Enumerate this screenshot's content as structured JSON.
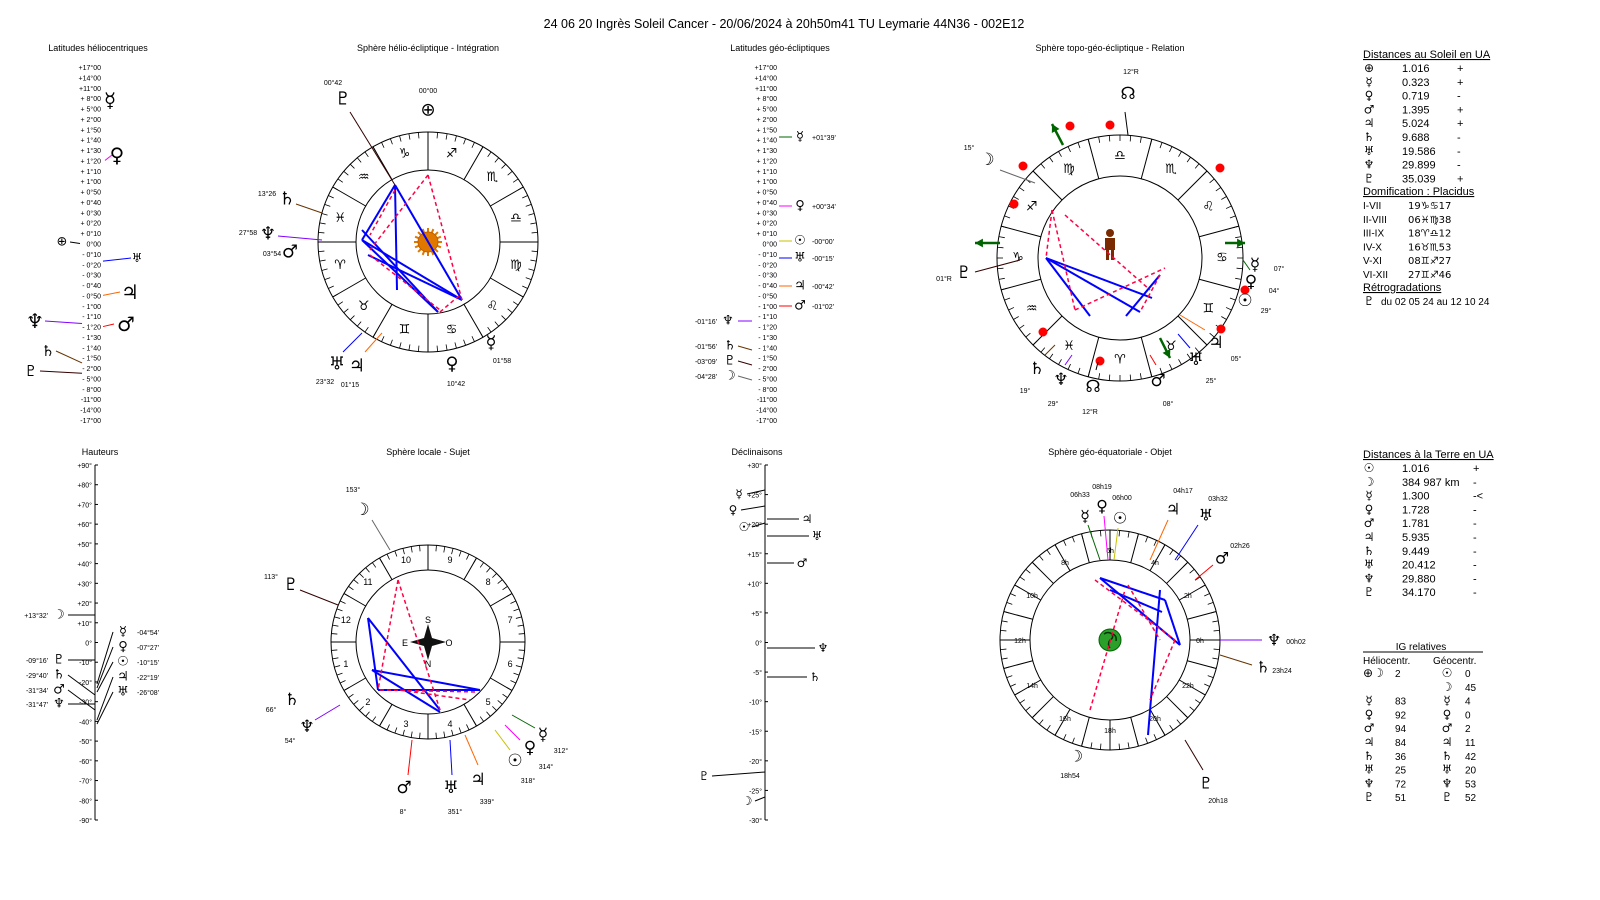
{
  "title": "24 06 20 Ingrès Soleil Cancer   -  20/06/2024 à 20h50m41 TU  Leymarie  44N36 - 002E12",
  "glyphs": {
    "earth": "⊕",
    "sun": "☉",
    "moon": "☽",
    "mercury": "☿",
    "venus": "♀",
    "mars": "♂",
    "jupiter": "♃",
    "saturn": "♄",
    "uranus": "♅",
    "neptune": "♆",
    "pluto": "♇",
    "node": "☊"
  },
  "colors": {
    "earth": "#000000",
    "sun": "#c8c000",
    "moon": "#666666",
    "mercury": "#006400",
    "venus": "#ff00ff",
    "mars": "#ff0000",
    "jupiter": "#ff6600",
    "saturn": "#663300",
    "uranus": "#0000ff",
    "neptune": "#8000ff",
    "pluto": "#330000",
    "node": "#000000",
    "aspect_major": "#0000ff",
    "aspect_minor": "#ff0044",
    "arrow": "#006400"
  },
  "panels": {
    "helio_lat": {
      "title": "Latitudes héliocentriques",
      "ticks": [
        "+17°00",
        "+14°00",
        "+11°00",
        "+ 8°00",
        "+ 5°00",
        "+ 2°00",
        "+ 1°50",
        "+ 1°40",
        "+ 1°30",
        "+ 1°20",
        "+ 1°10",
        "+ 1°00",
        "+ 0°50",
        "+ 0°40",
        "+ 0°30",
        "+ 0°20",
        "+ 0°10",
        "0°00",
        "- 0°10",
        "- 0°20",
        "- 0°30",
        "- 0°40",
        "- 0°50",
        "- 1°00",
        "- 1°10",
        "- 1°20",
        "- 1°30",
        "- 1°40",
        "- 1°50",
        "- 2°00",
        "- 5°00",
        "- 8°00",
        "-11°00",
        "-14°00",
        "-17°00"
      ]
    },
    "helio_sphere": {
      "title": "Sphère hélio-écliptique - Intégration",
      "signs": [
        "♈",
        "♉",
        "♊",
        "♋",
        "♌",
        "♍",
        "♎",
        "♏",
        "♐",
        "♑",
        "♒",
        "♓"
      ],
      "planets": [
        {
          "p": "pluto",
          "label": "00°42"
        },
        {
          "p": "earth",
          "label": "00°00"
        },
        {
          "p": "saturn",
          "label": "13°26"
        },
        {
          "p": "neptune",
          "label": "27°58"
        },
        {
          "p": "mars",
          "label": "03°54"
        },
        {
          "p": "uranus",
          "label": "23°32"
        },
        {
          "p": "jupiter",
          "label": "01°15"
        },
        {
          "p": "venus",
          "label": "10°42"
        },
        {
          "p": "mercury",
          "label": "01°58"
        }
      ]
    },
    "geo_lat": {
      "title": "Latitudes géo-écliptiques",
      "markers": [
        {
          "p": "mercury",
          "label": "+01°39'"
        },
        {
          "p": "venus",
          "label": "+00°34'"
        },
        {
          "p": "sun",
          "label": "-00°00'"
        },
        {
          "p": "uranus",
          "label": "-00°15'"
        },
        {
          "p": "jupiter",
          "label": "-00°42'"
        },
        {
          "p": "mars",
          "label": "-01°02'"
        },
        {
          "p": "neptune",
          "label": "-01°16'"
        },
        {
          "p": "saturn",
          "label": "-01°56'"
        },
        {
          "p": "pluto",
          "label": "-03°09'"
        },
        {
          "p": "moon",
          "label": "-04°28'"
        }
      ]
    },
    "topo_sphere": {
      "title": "Sphère topo-géo-écliptique - Relation",
      "signs": [
        "♎",
        "♏",
        "♌",
        "♋",
        "♊",
        "♉",
        "♈",
        "♓",
        "♒",
        "♑",
        "♐",
        "♍"
      ],
      "planets": [
        {
          "p": "node",
          "label": "12°R"
        },
        {
          "p": "moon",
          "label": "15°"
        },
        {
          "p": "pluto",
          "label": "01°R"
        },
        {
          "p": "mercury",
          "label": "07°"
        },
        {
          "p": "venus",
          "label": "04°"
        },
        {
          "p": "sun",
          "label": "29°"
        },
        {
          "p": "jupiter",
          "label": "05°"
        },
        {
          "p": "uranus",
          "label": "25°"
        },
        {
          "p": "mars",
          "label": "08°"
        },
        {
          "p": "node",
          "label": "12°R"
        },
        {
          "p": "neptune",
          "label": "29°"
        },
        {
          "p": "saturn",
          "label": "19°"
        }
      ]
    },
    "heights": {
      "title": "Hauteurs",
      "ticks": [
        "+90°",
        "+80°",
        "+70°",
        "+60°",
        "+50°",
        "+40°",
        "+30°",
        "+20°",
        "+10°",
        "0°",
        "-10°",
        "-20°",
        "-30°",
        "-40°",
        "-50°",
        "-60°",
        "-70°",
        "-80°",
        "-90°"
      ],
      "markers": [
        {
          "p": "moon",
          "label": "+13°32'"
        },
        {
          "p": "mercury",
          "label": "-04°54'"
        },
        {
          "p": "venus",
          "label": "-07°27'"
        },
        {
          "p": "sun",
          "label": "-10°15'"
        },
        {
          "p": "pluto",
          "label": "-09°16'"
        },
        {
          "p": "jupiter",
          "label": "-22°19'"
        },
        {
          "p": "uranus",
          "label": "-26°08'"
        },
        {
          "p": "saturn",
          "label": "-29°40'"
        },
        {
          "p": "mars",
          "label": "-31°34'"
        },
        {
          "p": "neptune",
          "label": "-31°47'"
        }
      ]
    },
    "local_sphere": {
      "title": "Sphère locale - Sujet",
      "houses": [
        "1",
        "2",
        "3",
        "4",
        "5",
        "6",
        "7",
        "8",
        "9",
        "10",
        "11",
        "12"
      ],
      "compass": {
        "s": "S",
        "e": "E",
        "o": "O",
        "n": "N"
      },
      "planets": [
        {
          "p": "moon",
          "label": "153°"
        },
        {
          "p": "pluto",
          "label": "113°"
        },
        {
          "p": "saturn",
          "label": "66°"
        },
        {
          "p": "neptune",
          "label": "54°"
        },
        {
          "p": "mars",
          "label": "8°"
        },
        {
          "p": "uranus",
          "label": "351°"
        },
        {
          "p": "jupiter",
          "label": "339°"
        },
        {
          "p": "sun",
          "label": "318°"
        },
        {
          "p": "venus",
          "label": "314°"
        },
        {
          "p": "mercury",
          "label": "312°"
        }
      ]
    },
    "declinations": {
      "title": "Déclinaisons",
      "ticks": [
        "+30°",
        "+25°",
        "+20°",
        "+15°",
        "+10°",
        "+5°",
        "0°",
        "-5°",
        "-10°",
        "-15°",
        "-20°",
        "-25°",
        "-30°"
      ],
      "markers": [
        "mercury",
        "venus",
        "sun",
        "jupiter",
        "uranus",
        "mars",
        "neptune",
        "saturn",
        "pluto",
        "moon"
      ]
    },
    "equatorial_sphere": {
      "title": "Sphère géo-équatoriale - Objet",
      "hours": [
        "0h",
        "2h",
        "4h",
        "6h",
        "8h",
        "10h",
        "12h",
        "14h",
        "16h",
        "18h",
        "20h",
        "22h"
      ],
      "planets": [
        {
          "p": "mercury",
          "label": "06h33"
        },
        {
          "p": "venus",
          "label": "08h19"
        },
        {
          "p": "sun",
          "label": "06h00"
        },
        {
          "p": "jupiter",
          "label": "04h17"
        },
        {
          "p": "uranus",
          "label": "03h32"
        },
        {
          "p": "mars",
          "label": "02h26"
        },
        {
          "p": "neptune",
          "label": "00h02"
        },
        {
          "p": "saturn",
          "label": "23h24"
        },
        {
          "p": "pluto",
          "label": "20h18"
        },
        {
          "p": "moon",
          "label": "18h54"
        }
      ]
    }
  },
  "right_panel": {
    "sun_distances": {
      "title": "Distances au Soleil en UA",
      "rows": [
        {
          "p": "earth",
          "value": "1.016",
          "sign": "+"
        },
        {
          "p": "mercury",
          "value": "0.323",
          "sign": "+"
        },
        {
          "p": "venus",
          "value": "0.719",
          "sign": "-"
        },
        {
          "p": "mars",
          "value": "1.395",
          "sign": "+"
        },
        {
          "p": "jupiter",
          "value": "5.024",
          "sign": "+"
        },
        {
          "p": "saturn",
          "value": "9.688",
          "sign": "-"
        },
        {
          "p": "uranus",
          "value": "19.586",
          "sign": "-"
        },
        {
          "p": "neptune",
          "value": "29.899",
          "sign": "-"
        },
        {
          "p": "pluto",
          "value": "35.039",
          "sign": "+"
        }
      ]
    },
    "houses": {
      "title": "Domification : Placidus",
      "rows": [
        {
          "axis": "I-VII",
          "value": "19♑♋17"
        },
        {
          "axis": "II-VIII",
          "value": "06♓♍38"
        },
        {
          "axis": "III-IX",
          "value": "18♈♎12"
        },
        {
          "axis": "IV-X",
          "value": "16♉♏53"
        },
        {
          "axis": "V-XI",
          "value": "08♊♐27"
        },
        {
          "axis": "VI-XII",
          "value": "27♊♐46"
        }
      ]
    },
    "retro": {
      "title": "Rétrogradations",
      "rows": [
        {
          "p": "pluto",
          "text": "du 02 05 24 au 12 10 24"
        }
      ]
    },
    "earth_distances": {
      "title": "Distances à la Terre en UA",
      "rows": [
        {
          "p": "sun",
          "value": "1.016",
          "sign": "+"
        },
        {
          "p": "moon",
          "value": "384 987 km",
          "sign": "-"
        },
        {
          "p": "mercury",
          "value": "1.300",
          "sign": "-<"
        },
        {
          "p": "venus",
          "value": "1.728",
          "sign": "-"
        },
        {
          "p": "mars",
          "value": "1.781",
          "sign": "-"
        },
        {
          "p": "jupiter",
          "value": "5.935",
          "sign": "-"
        },
        {
          "p": "saturn",
          "value": "9.449",
          "sign": "-"
        },
        {
          "p": "uranus",
          "value": "20.412",
          "sign": "-"
        },
        {
          "p": "neptune",
          "value": "29.880",
          "sign": "-"
        },
        {
          "p": "pluto",
          "value": "34.170",
          "sign": "-"
        }
      ]
    },
    "ig": {
      "title": "IG relatives",
      "helio_header": "Héliocentr.",
      "geo_header": "Géocentr.",
      "helio": [
        {
          "p": "earth+moon",
          "glyph": "⊕☽",
          "value": "2"
        },
        {
          "p": "mercury",
          "value": "83"
        },
        {
          "p": "venus",
          "value": "92"
        },
        {
          "p": "mars",
          "value": "94"
        },
        {
          "p": "jupiter",
          "value": "84"
        },
        {
          "p": "saturn",
          "value": "36"
        },
        {
          "p": "uranus",
          "value": "25"
        },
        {
          "p": "neptune",
          "value": "72"
        },
        {
          "p": "pluto",
          "value": "51"
        }
      ],
      "geo": [
        {
          "p": "sun",
          "value": "0"
        },
        {
          "p": "moon",
          "value": "45"
        },
        {
          "p": "mercury",
          "value": "4"
        },
        {
          "p": "venus",
          "value": "0"
        },
        {
          "p": "mars",
          "value": "2"
        },
        {
          "p": "jupiter",
          "value": "11"
        },
        {
          "p": "saturn",
          "value": "42"
        },
        {
          "p": "uranus",
          "value": "20"
        },
        {
          "p": "neptune",
          "value": "53"
        },
        {
          "p": "pluto",
          "value": "52"
        }
      ]
    }
  }
}
